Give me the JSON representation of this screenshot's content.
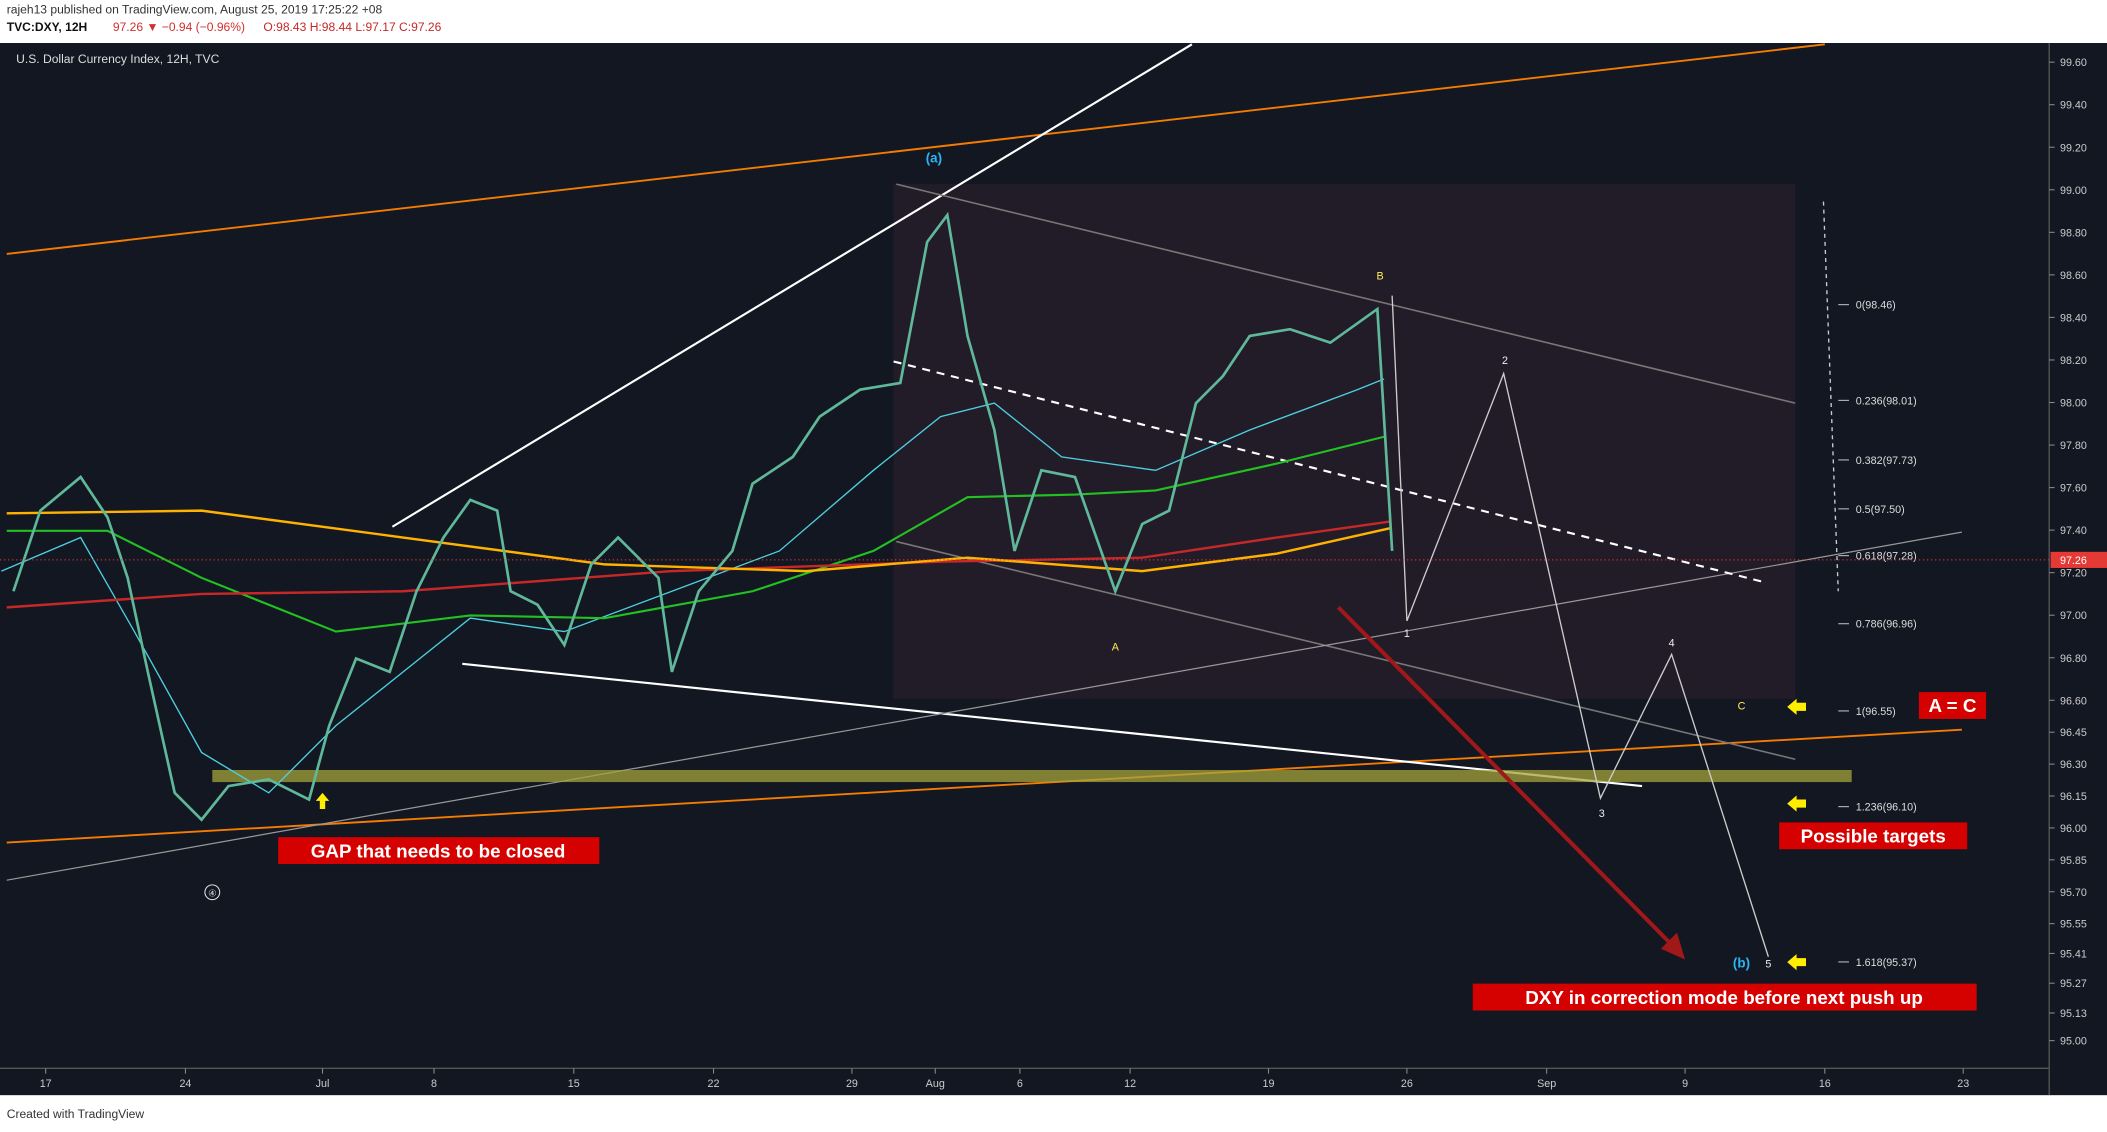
{
  "header": {
    "publisher": "rajeh13 published on TradingView.com, August 25, 2019 17:25:22 +08",
    "symbol": "TVC:DXY, 12H",
    "change": "97.26 ▼ −0.94 (−0.96%)",
    "ohlc": "O:98.43 H:98.44 L:97.17 C:97.26"
  },
  "chart_data": {
    "type": "candlestick",
    "title": "U.S. Dollar Currency Index, 12H, TVC",
    "ylim": [
      94.87,
      99.69
    ],
    "yticks": [
      {
        "value": 99.6,
        "label": "99.60"
      },
      {
        "value": 99.4,
        "label": "99.40"
      },
      {
        "value": 99.2,
        "label": "99.20"
      },
      {
        "value": 99.0,
        "label": "99.00"
      },
      {
        "value": 98.8,
        "label": "98.80"
      },
      {
        "value": 98.6,
        "label": "98.60"
      },
      {
        "value": 98.4,
        "label": "98.40"
      },
      {
        "value": 98.2,
        "label": "98.20"
      },
      {
        "value": 98.0,
        "label": "98.00"
      },
      {
        "value": 97.8,
        "label": "97.80"
      },
      {
        "value": 97.6,
        "label": "97.60"
      },
      {
        "value": 97.4,
        "label": "97.40"
      },
      {
        "value": 97.2,
        "label": "97.20"
      },
      {
        "value": 97.0,
        "label": "97.00"
      },
      {
        "value": 96.8,
        "label": "96.80"
      },
      {
        "value": 96.6,
        "label": "96.60"
      },
      {
        "value": 96.45,
        "label": "96.45"
      },
      {
        "value": 96.3,
        "label": "96.30"
      },
      {
        "value": 96.15,
        "label": "96.15"
      },
      {
        "value": 96.0,
        "label": "96.00"
      },
      {
        "value": 95.85,
        "label": "95.85"
      },
      {
        "value": 95.7,
        "label": "95.70"
      },
      {
        "value": 95.55,
        "label": "95.55"
      },
      {
        "value": 95.41,
        "label": "95.41"
      },
      {
        "value": 95.27,
        "label": "95.27"
      },
      {
        "value": 95.13,
        "label": "95.13"
      },
      {
        "value": 95.0,
        "label": "95.00"
      }
    ],
    "x_labels": [
      "17",
      "24",
      "Jul",
      "8",
      "15",
      "22",
      "29",
      "Aug",
      "6",
      "12",
      "19",
      "26",
      "Sep",
      "9",
      "16",
      "23"
    ],
    "last_price": {
      "value": 97.26,
      "label": "97.26"
    },
    "fib_levels": [
      {
        "value": 98.46,
        "label": "0(98.46)"
      },
      {
        "value": 98.01,
        "label": "0.236(98.01)"
      },
      {
        "value": 97.73,
        "label": "0.382(97.73)"
      },
      {
        "value": 97.5,
        "label": "0.5(97.50)"
      },
      {
        "value": 97.28,
        "label": "0.618(97.28)"
      },
      {
        "value": 96.96,
        "label": "0.786(96.96)"
      },
      {
        "value": 96.55,
        "label": "1(96.55)"
      },
      {
        "value": 96.1,
        "label": "1.236(96.10)"
      },
      {
        "value": 95.37,
        "label": "1.618(95.37)"
      }
    ],
    "wave_labels": [
      "(a)",
      "B",
      "A",
      "1",
      "2",
      "3",
      "4",
      "5",
      "C",
      "(b)",
      "④"
    ],
    "annotations": [
      "GAP that needs to be closed",
      "A = C",
      "Possible targets",
      "DXY in correction mode before next push up"
    ]
  },
  "footer": "Created with TradingView"
}
